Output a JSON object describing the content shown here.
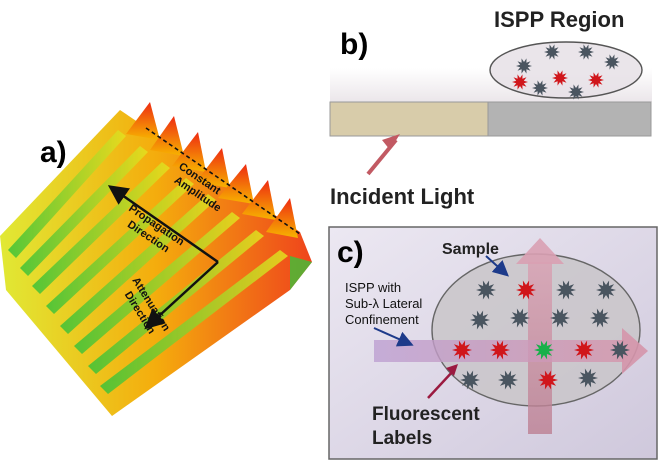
{
  "panel_a": {
    "label": "a)",
    "constant_amplitude": [
      "Constant",
      "Amplitude"
    ],
    "propagation_direction": [
      "Propagation",
      "Direction"
    ],
    "attenuation_direction": [
      "Attenuation",
      "Direction"
    ]
  },
  "panel_b": {
    "label": "b)",
    "region_label": "ISPP Region",
    "incident_light": "Incident Light"
  },
  "panel_c": {
    "label": "c)",
    "sample": "Sample",
    "ispp_confinement": [
      "ISPP with",
      "Sub-λ Lateral",
      "Confinement"
    ],
    "fluorescent_labels": [
      "Fluorescent",
      "Labels"
    ]
  },
  "colors": {
    "molecule_gray": "#4a5560",
    "molecule_red": "#d0161b",
    "molecule_green": "#18b04a",
    "arrow_pink": "#c88a9c",
    "light_arrow": "#c25a63",
    "gold_layer": "#d8ccaa",
    "gray_layer": "#b3b3b3"
  }
}
